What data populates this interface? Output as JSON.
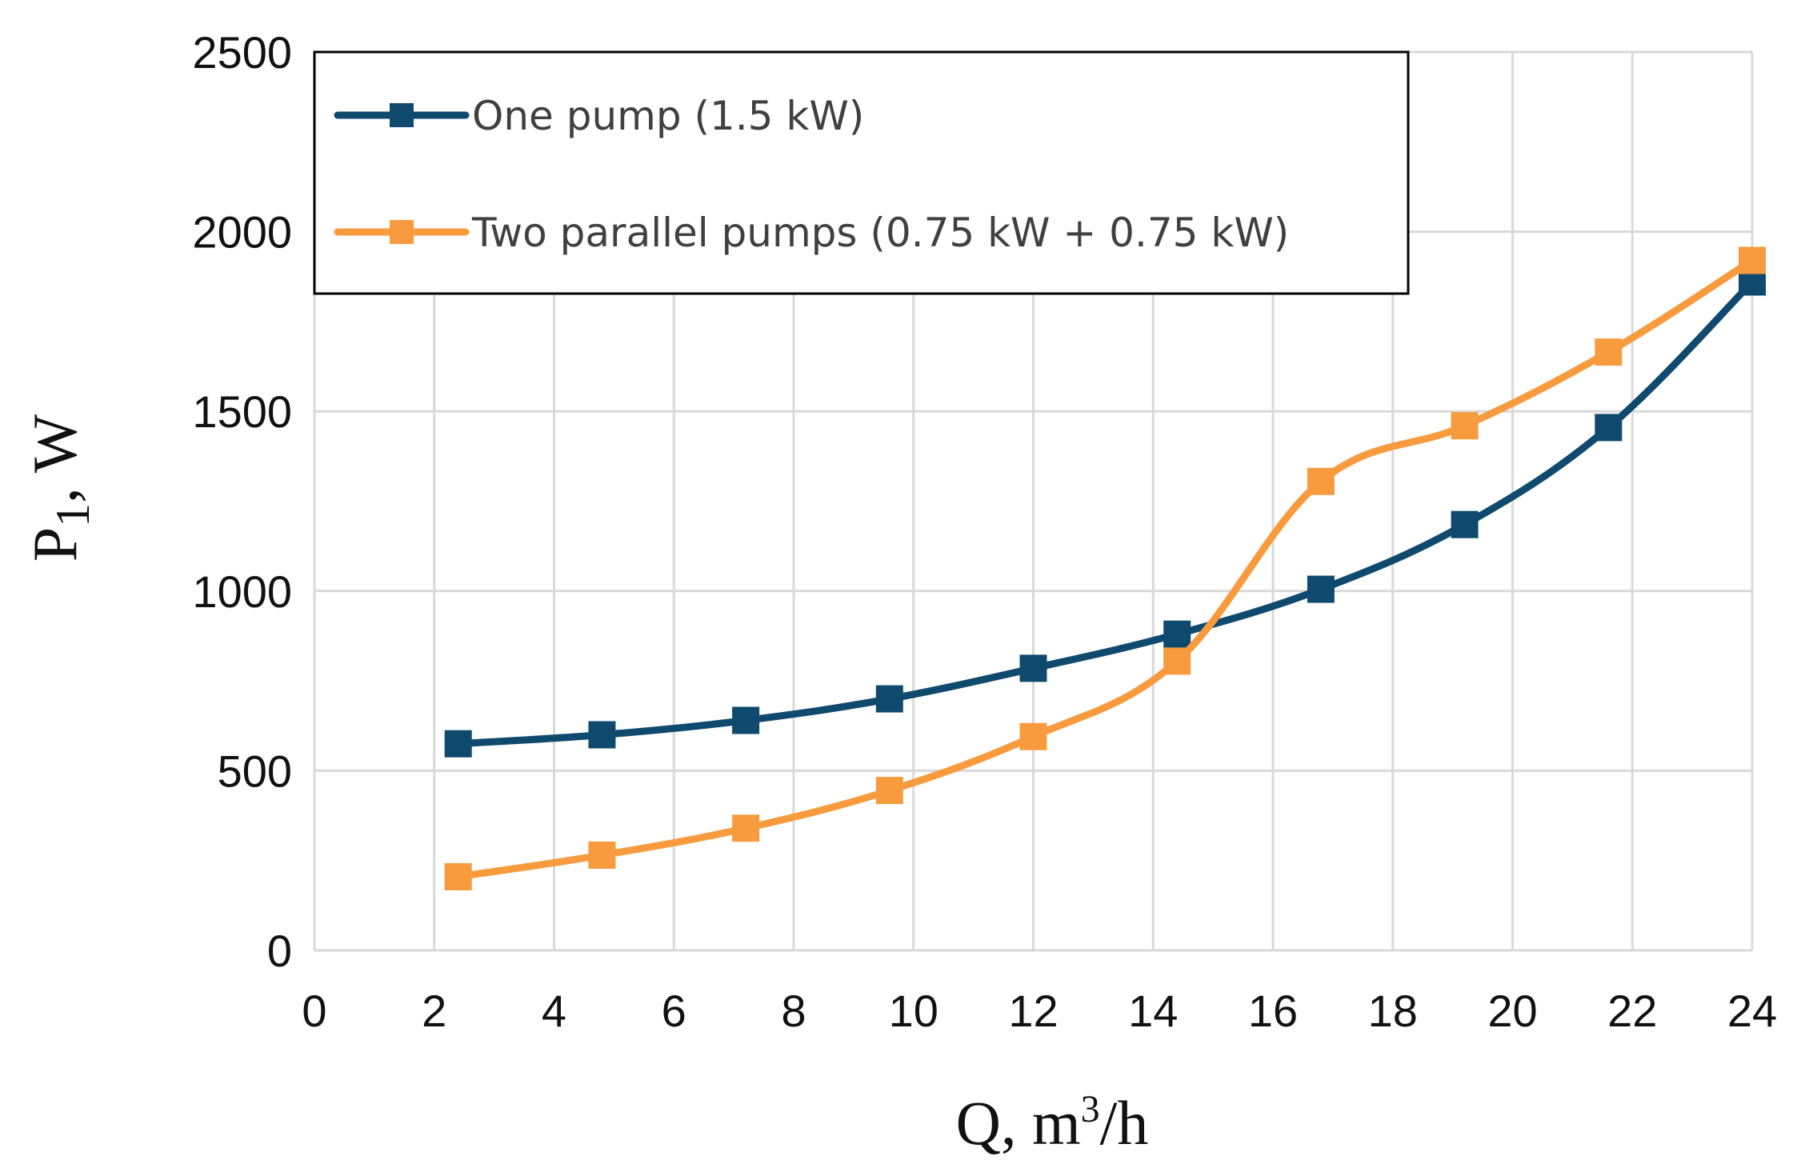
{
  "chart_data": {
    "type": "line",
    "title": "",
    "xlabel": {
      "main": "Q, m",
      "sup": "3",
      "tail": "/h"
    },
    "ylabel": {
      "main": "P",
      "sub": "1",
      "tail": ", W"
    },
    "xlim": [
      0,
      24
    ],
    "ylim": [
      0,
      2500
    ],
    "x_ticks": [
      0,
      2,
      4,
      6,
      8,
      10,
      12,
      14,
      16,
      18,
      20,
      22,
      24
    ],
    "y_ticks": [
      0,
      500,
      1000,
      1500,
      2000,
      2500
    ],
    "grid": true,
    "legend_position": "top-left",
    "series": [
      {
        "name": "One pump (1.5 kW)",
        "color": "#0f4a6e",
        "marker": "square",
        "x": [
          2.4,
          4.8,
          7.2,
          9.6,
          12.0,
          14.4,
          16.8,
          19.2,
          21.6,
          24.0
        ],
        "y": [
          575,
          600,
          640,
          700,
          785,
          880,
          1005,
          1185,
          1455,
          1860
        ]
      },
      {
        "name": "Two parallel pumps (0.75 kW + 0.75 kW)",
        "color": "#f79b3e",
        "marker": "square",
        "x": [
          2.4,
          4.8,
          7.2,
          9.6,
          12.0,
          14.4,
          16.8,
          19.2,
          21.6,
          24.0
        ],
        "y": [
          205,
          265,
          340,
          445,
          595,
          805,
          1305,
          1460,
          1665,
          1920
        ]
      }
    ]
  }
}
